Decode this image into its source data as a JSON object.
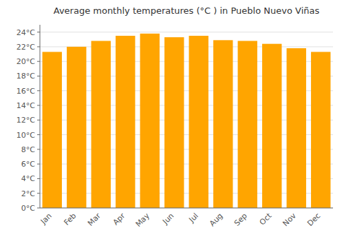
{
  "chart_data": {
    "type": "bar",
    "title": "Average monthly temperatures (°C ) in Pueblo Nuevo Viñas",
    "categories": [
      "Jan",
      "Feb",
      "Mar",
      "Apr",
      "May",
      "Jun",
      "Jul",
      "Aug",
      "Sep",
      "Oct",
      "Nov",
      "Dec"
    ],
    "values": [
      21.3,
      22.0,
      22.8,
      23.5,
      23.8,
      23.3,
      23.5,
      22.9,
      22.8,
      22.4,
      21.8,
      21.3
    ],
    "color": "#FFA500",
    "ylim": [
      0,
      25
    ],
    "yticks": [
      {
        "value": 0,
        "label": "0°C"
      },
      {
        "value": 2,
        "label": "2°C"
      },
      {
        "value": 4,
        "label": "4°C"
      },
      {
        "value": 6,
        "label": "6°C"
      },
      {
        "value": 8,
        "label": "8°C"
      },
      {
        "value": 10,
        "label": "10°C"
      },
      {
        "value": 12,
        "label": "12°C"
      },
      {
        "value": 14,
        "label": "14°C"
      },
      {
        "value": 16,
        "label": "16°C"
      },
      {
        "value": 18,
        "label": "18°C"
      },
      {
        "value": 20,
        "label": "20°C"
      },
      {
        "value": 22,
        "label": "22°C"
      },
      {
        "value": 24,
        "label": "24°C"
      }
    ],
    "grid": true
  }
}
